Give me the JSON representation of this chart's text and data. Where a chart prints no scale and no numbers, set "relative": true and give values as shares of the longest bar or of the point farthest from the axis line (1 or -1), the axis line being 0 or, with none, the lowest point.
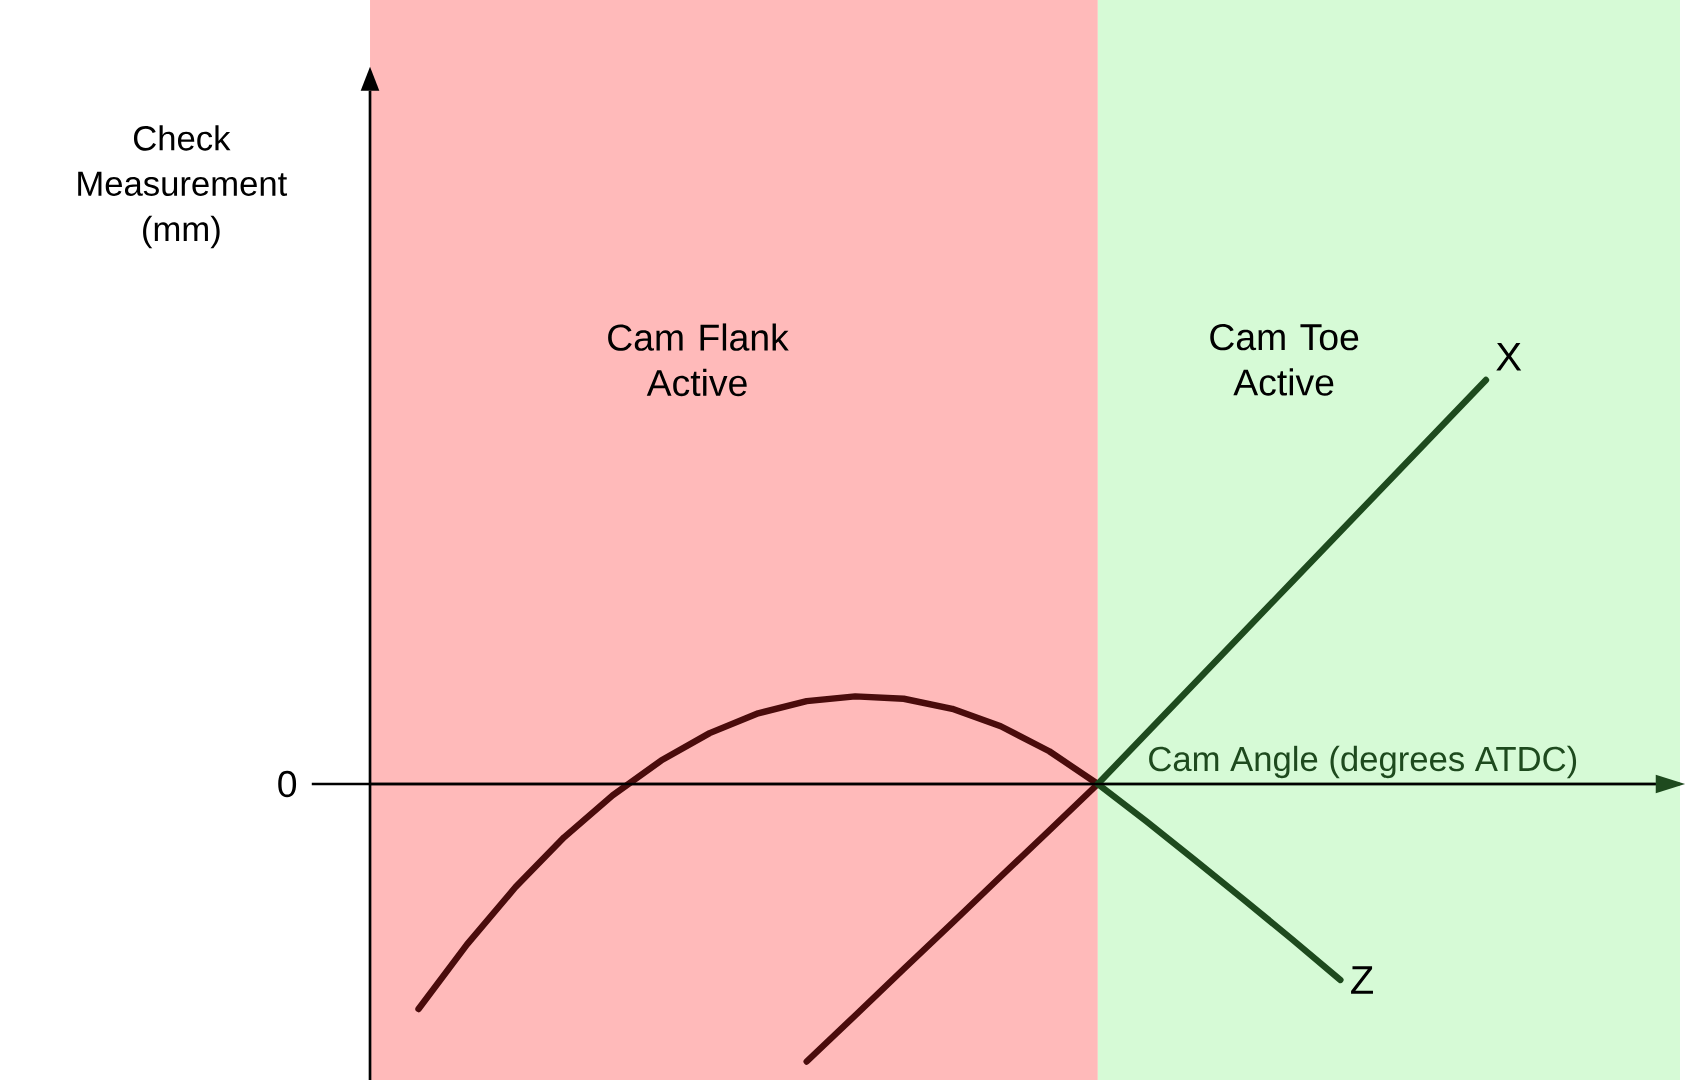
{
  "chart_data": {
    "type": "line",
    "relative": true,
    "xlabel": "Cam Angle (degrees ATDC)",
    "ylabel": "Check Measurement (mm)",
    "categories": [
      null,
      null,
      null,
      null,
      null,
      null,
      null,
      null,
      null,
      null,
      null,
      null,
      null,
      null,
      null,
      null,
      null,
      null,
      null,
      null,
      null,
      null,
      null,
      null,
      null,
      null,
      null,
      null
    ],
    "series": [
      {
        "color": "#4a0c0c",
        "values": [
          null,
          -0.557,
          -0.397,
          -0.255,
          -0.132,
          -0.028,
          0.058,
          0.126,
          0.175,
          0.205,
          0.217,
          0.211,
          0.186,
          0.143,
          0.081,
          0,
          null,
          null,
          null,
          null,
          null,
          null,
          null,
          null,
          null,
          null,
          null,
          null
        ]
      },
      {
        "color": "#4a0c0c",
        "values": [
          null,
          null,
          null,
          null,
          null,
          null,
          null,
          null,
          null,
          -0.687,
          -0.573,
          -0.458,
          -0.344,
          -0.229,
          -0.115,
          0,
          null,
          null,
          null,
          null,
          null,
          null,
          null,
          null,
          null,
          null,
          null,
          null
        ]
      },
      {
        "name": "X",
        "color": "#1e4a1e",
        "values": [
          null,
          null,
          null,
          null,
          null,
          null,
          null,
          null,
          null,
          null,
          null,
          null,
          null,
          null,
          null,
          0,
          0.125,
          0.25,
          0.375,
          0.5,
          0.625,
          0.75,
          0.875,
          1,
          null,
          null,
          null,
          null
        ]
      },
      {
        "name": "Z",
        "color": "#1e4a1e",
        "values": [
          null,
          null,
          null,
          null,
          null,
          null,
          null,
          null,
          null,
          null,
          null,
          null,
          null,
          null,
          null,
          0,
          -0.092,
          -0.188,
          -0.285,
          -0.384,
          -0.485,
          null,
          null,
          null,
          null,
          null,
          null,
          null
        ]
      }
    ],
    "annotations": [
      "0",
      "Cam Flank Active",
      "Cam Toe Active"
    ]
  }
}
